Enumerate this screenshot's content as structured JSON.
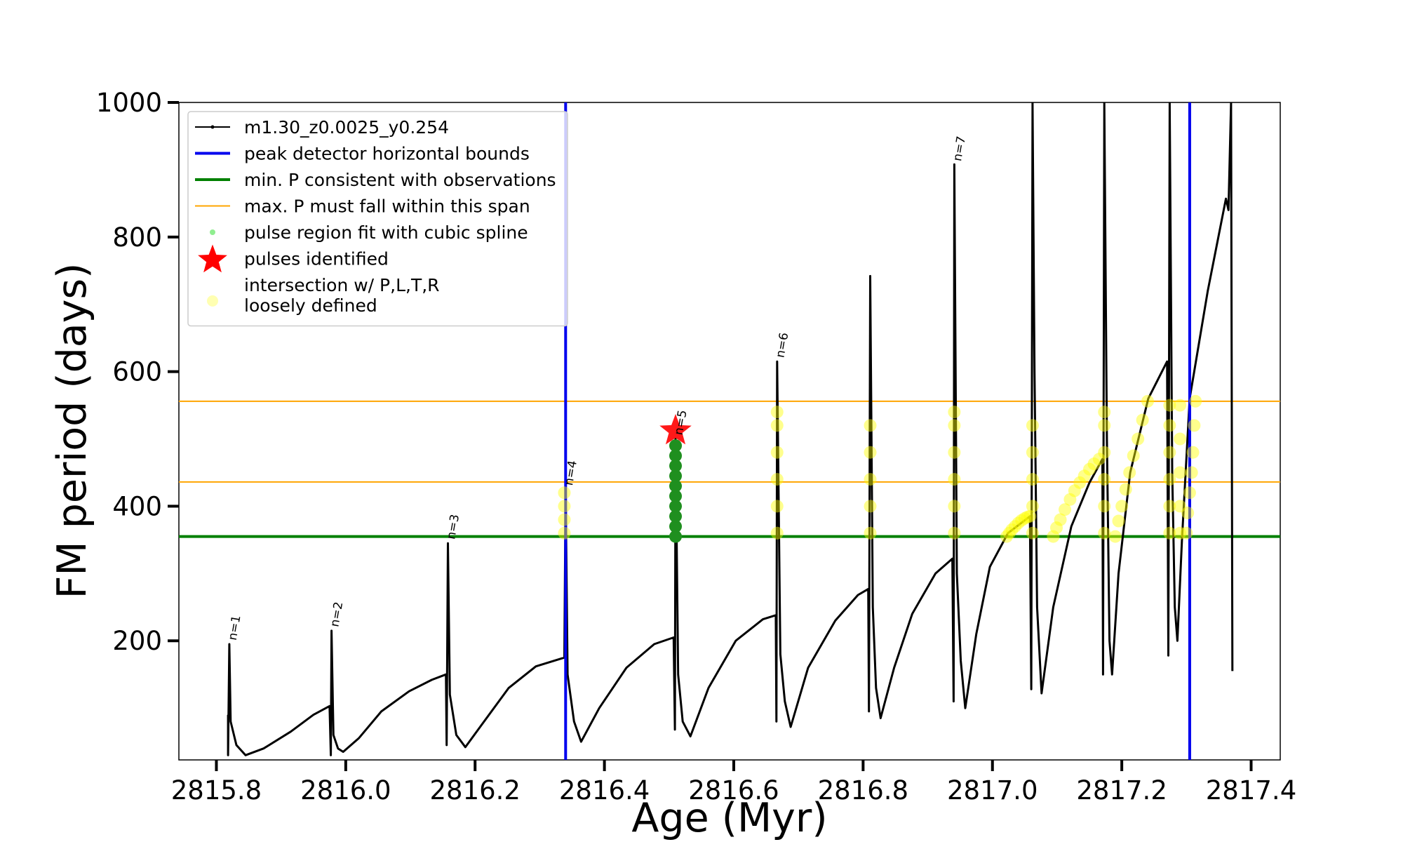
{
  "chart_data": {
    "type": "line",
    "xlabel": "Age (Myr)",
    "ylabel": "FM period (days)",
    "xlim": [
      2815.742,
      2817.445
    ],
    "ylim": [
      23,
      1000
    ],
    "xticks": [
      2815.8,
      {
        "value": 2816.0,
        "label": "2816.0"
      },
      2816.2,
      2816.4,
      2816.6,
      2816.8,
      {
        "value": 2817.0,
        "label": "2817.0"
      },
      2817.2,
      2817.4
    ],
    "yticks": [
      200,
      400,
      600,
      800,
      1000
    ],
    "legend": "upper left",
    "series": [
      {
        "name": "m1.30_z0.0025_y0.254",
        "type": "line",
        "color": "#000000",
        "x": [
          2815.818,
          2815.818,
          2815.82,
          2815.822,
          2815.831,
          2815.845,
          2815.873,
          2815.915,
          2815.95,
          2815.975,
          2815.977,
          2815.978,
          2815.981,
          2815.988,
          2815.996,
          2816.02,
          2816.055,
          2816.098,
          2816.133,
          2816.155,
          2816.156,
          2816.158,
          2816.161,
          2816.171,
          2816.185,
          2816.21,
          2816.252,
          2816.294,
          2816.338,
          2816.34,
          2816.343,
          2816.353,
          2816.364,
          2816.392,
          2816.434,
          2816.477,
          2816.507,
          2816.509,
          2816.51,
          2816.514,
          2816.521,
          2816.533,
          2816.561,
          2816.603,
          2816.645,
          2816.665,
          2816.666,
          2816.667,
          2816.672,
          2816.679,
          2816.688,
          2816.715,
          2816.757,
          2816.792,
          2816.808,
          2816.809,
          2816.811,
          2816.815,
          2816.82,
          2816.827,
          2816.848,
          2816.876,
          2816.912,
          2816.938,
          2816.94,
          2816.941,
          2816.945,
          2816.951,
          2816.958,
          2816.975,
          2816.996,
          2817.024,
          2817.058,
          2817.06,
          2817.062,
          2817.065,
          2817.069,
          2817.076,
          2817.094,
          2817.122,
          2817.15,
          2817.17,
          2817.171,
          2817.173,
          2817.177,
          2817.181,
          2817.185,
          2817.195,
          2817.213,
          2817.241,
          2817.27,
          2817.272,
          2817.274,
          2817.278,
          2817.282,
          2817.286,
          2817.293,
          2817.305,
          2817.333,
          2817.361,
          2817.365,
          2817.369,
          2817.371
        ],
        "y": [
          90,
          30,
          195,
          80,
          45,
          30,
          40,
          65,
          90,
          103,
          30,
          215,
          60,
          40,
          35,
          55,
          95,
          125,
          142,
          150,
          45,
          345,
          120,
          60,
          42,
          75,
          130,
          162,
          175,
          430,
          150,
          80,
          50,
          100,
          160,
          195,
          205,
          68,
          500,
          150,
          80,
          58,
          130,
          200,
          232,
          238,
          80,
          615,
          180,
          110,
          72,
          160,
          230,
          268,
          277,
          95,
          742,
          250,
          130,
          85,
          160,
          240,
          300,
          322,
          110,
          908,
          300,
          170,
          100,
          210,
          310,
          360,
          385,
          128,
          1000,
          600,
          250,
          122,
          250,
          370,
          435,
          470,
          150,
          1000,
          500,
          200,
          150,
          300,
          450,
          560,
          615,
          178,
          1000,
          450,
          250,
          200,
          350,
          560,
          720,
          857,
          840,
          1000,
          155
        ]
      },
      {
        "name": "peak detector horizontal bounds",
        "type": "vline",
        "color": "#0000ee",
        "x": [
          2816.34,
          2817.305
        ]
      },
      {
        "name": "min. P consistent with observations",
        "type": "hline",
        "color": "#008000",
        "values": [
          355
        ]
      },
      {
        "name": "max. P must fall within this span",
        "type": "hline",
        "color": "#ffa500",
        "values": [
          436,
          556
        ]
      },
      {
        "name": "pulse region fit with cubic spline",
        "type": "scatter",
        "color": "#1f8f1f",
        "x": [
          2816.51,
          2816.51,
          2816.51,
          2816.51,
          2816.51,
          2816.51,
          2816.51,
          2816.51,
          2816.51,
          2816.51
        ],
        "y": [
          355,
          370,
          385,
          400,
          415,
          430,
          445,
          460,
          475,
          490
        ]
      },
      {
        "name": "pulses identified",
        "type": "star",
        "color": "#ff0000",
        "x": [
          2816.51
        ],
        "y": [
          512
        ]
      },
      {
        "name": "intersection w/ P,L,T,R\nloosely defined",
        "type": "scatter",
        "color": "#ffff00",
        "alpha": 0.45,
        "x": [
          2816.338,
          2816.338,
          2816.338,
          2816.338,
          2816.667,
          2816.667,
          2816.667,
          2816.667,
          2816.667,
          2816.667,
          2816.811,
          2816.811,
          2816.811,
          2816.811,
          2816.811,
          2816.941,
          2816.941,
          2816.941,
          2816.941,
          2816.941,
          2816.941,
          2817.062,
          2817.062,
          2817.062,
          2817.062,
          2817.062,
          2817.173,
          2817.173,
          2817.173,
          2817.173,
          2817.173,
          2817.173,
          2817.274,
          2817.274,
          2817.274,
          2817.274,
          2817.274,
          2817.274,
          2817.29,
          2817.29,
          2817.29,
          2817.29,
          2817.29,
          2817.022,
          2817.026,
          2817.03,
          2817.035,
          2817.04,
          2817.045,
          2817.05,
          2817.054,
          2817.058,
          2817.094,
          2817.099,
          2817.105,
          2817.112,
          2817.12,
          2817.127,
          2817.135,
          2817.142,
          2817.15,
          2817.157,
          2817.165,
          2817.19,
          2817.195,
          2817.2,
          2817.206,
          2817.212,
          2817.218,
          2817.225,
          2817.232,
          2817.24,
          2817.3,
          2817.302,
          2817.305,
          2817.308,
          2817.31,
          2817.312,
          2817.314
        ],
        "y": [
          360,
          380,
          400,
          420,
          360,
          400,
          440,
          480,
          520,
          540,
          360,
          400,
          440,
          480,
          520,
          360,
          400,
          440,
          480,
          520,
          540,
          360,
          400,
          440,
          480,
          520,
          360,
          400,
          440,
          480,
          520,
          540,
          360,
          400,
          440,
          480,
          520,
          550,
          360,
          400,
          450,
          500,
          550,
          355,
          360,
          365,
          370,
          375,
          379,
          382,
          384,
          385,
          355,
          368,
          380,
          395,
          410,
          423,
          435,
          445,
          455,
          463,
          470,
          355,
          378,
          400,
          425,
          450,
          475,
          500,
          528,
          556,
          360,
          390,
          420,
          450,
          480,
          520,
          556
        ]
      }
    ],
    "annotations": [
      {
        "text": "n=1",
        "x": 2815.826,
        "y": 200
      },
      {
        "text": "n=2",
        "x": 2815.984,
        "y": 220
      },
      {
        "text": "n=3",
        "x": 2816.164,
        "y": 350
      },
      {
        "text": "n=4",
        "x": 2816.346,
        "y": 430
      },
      {
        "text": "n=5",
        "x": 2816.516,
        "y": 505
      },
      {
        "text": "n=6",
        "x": 2816.673,
        "y": 620
      },
      {
        "text": "n=7",
        "x": 2816.947,
        "y": 912
      }
    ]
  }
}
